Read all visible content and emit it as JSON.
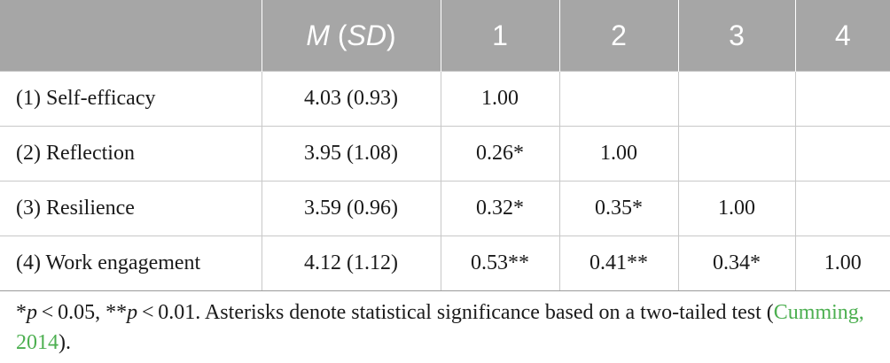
{
  "table": {
    "header": {
      "label_col": "",
      "mean_sd_m": "M",
      "mean_sd_sd": "SD",
      "cols": [
        "1",
        "2",
        "3",
        "4"
      ]
    },
    "rows": [
      {
        "label": "(1) Self-efficacy",
        "msd": "4.03 (0.93)",
        "c1": "1.00",
        "c2": "",
        "c3": "",
        "c4": ""
      },
      {
        "label": "(2) Reflection",
        "msd": "3.95 (1.08)",
        "c1": "0.26*",
        "c2": "1.00",
        "c3": "",
        "c4": ""
      },
      {
        "label": "(3) Resilience",
        "msd": "3.59 (0.96)",
        "c1": "0.32*",
        "c2": "0.35*",
        "c3": "1.00",
        "c4": ""
      },
      {
        "label": "(4) Work engagement",
        "msd": "4.12 (1.12)",
        "c1": "0.53**",
        "c2": "0.41**",
        "c3": "0.34*",
        "c4": "1.00"
      }
    ]
  },
  "note": {
    "star1": "*",
    "p1": "p",
    "t1": " < 0.05, **",
    "p2": "p",
    "t2": " < 0.01. Asterisks denote statistical significance based on a two-tailed test (",
    "citation": "Cumming, 2014",
    "t3": ")."
  },
  "colors": {
    "header_bg": "#a6a6a6",
    "header_text": "#ffffff",
    "grid": "#c8c8c8",
    "citation": "#4caf50"
  }
}
